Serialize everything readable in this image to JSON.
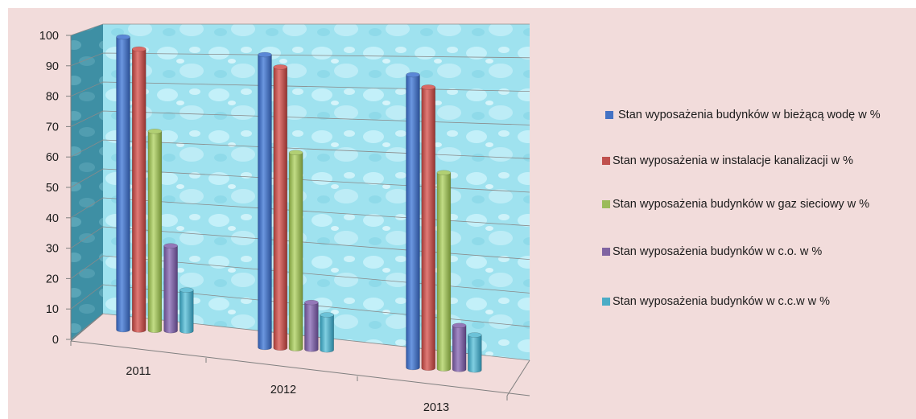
{
  "chart_data": {
    "type": "bar",
    "title": "",
    "xlabel": "",
    "ylabel": "",
    "categories": [
      "2011",
      "2012",
      "2013"
    ],
    "ylim": [
      0,
      100
    ],
    "y_ticks": [
      "0",
      "10",
      "20",
      "30",
      "40",
      "50",
      "60",
      "70",
      "80",
      "90",
      "100"
    ],
    "grid": true,
    "legend_position": "right",
    "series": [
      {
        "name": "Stan wyposażenia budynków w  bieżącą wodę w %",
        "color": "#4472c4",
        "values": [
          100,
          100,
          100
        ]
      },
      {
        "name": "Stan wyposażenia w instalacje  kanalizacji w %",
        "color": "#c0504d",
        "values": [
          96,
          96,
          96
        ]
      },
      {
        "name": "Stan wyposażenia budynków w  gaz sieciowy w %",
        "color": "#9bbb59",
        "values": [
          68,
          67,
          67
        ]
      },
      {
        "name": "Stan wyposażenia budynków w  c.o. w %",
        "color": "#8064a2",
        "values": [
          29,
          16,
          15
        ]
      },
      {
        "name": "Stan wyposażenia budynków w  c.c.w w %",
        "color": "#4bacc6",
        "values": [
          14,
          12,
          12
        ]
      }
    ]
  }
}
